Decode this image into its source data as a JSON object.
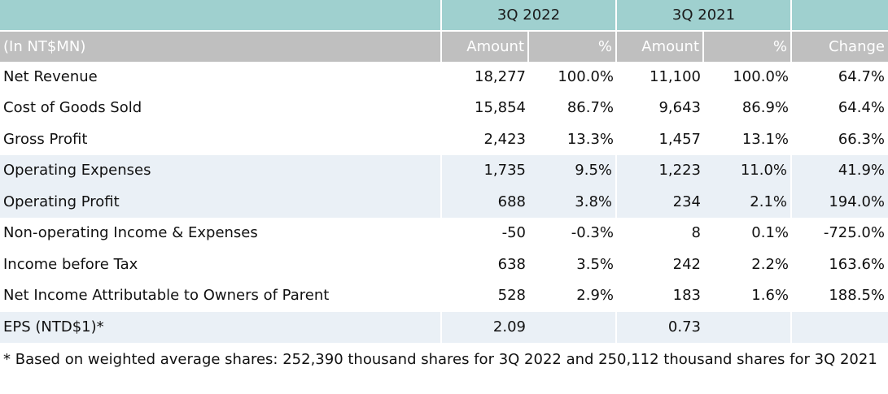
{
  "header": {
    "period1": "3Q 2022",
    "period2": "3Q 2021",
    "unit_label": "(In NT$MN)",
    "col_amount": "Amount",
    "col_pct": "%",
    "col_change": "Change"
  },
  "rows": [
    {
      "label": "Net Revenue",
      "a1": "18,277",
      "p1": "100.0%",
      "a2": "11,100",
      "p2": "100.0%",
      "chg": "64.7%"
    },
    {
      "label": "Cost of Goods Sold",
      "a1": "15,854",
      "p1": "86.7%",
      "a2": "9,643",
      "p2": "86.9%",
      "chg": "64.4%"
    },
    {
      "label": "Gross Profit",
      "a1": "2,423",
      "p1": "13.3%",
      "a2": "1,457",
      "p2": "13.1%",
      "chg": "66.3%"
    },
    {
      "label": "Operating Expenses",
      "a1": "1,735",
      "p1": "9.5%",
      "a2": "1,223",
      "p2": "11.0%",
      "chg": "41.9%"
    },
    {
      "label": "Operating Profit",
      "a1": "688",
      "p1": "3.8%",
      "a2": "234",
      "p2": "2.1%",
      "chg": "194.0%"
    },
    {
      "label": "Non-operating Income & Expenses",
      "a1": "-50",
      "p1": "-0.3%",
      "a2": "8",
      "p2": "0.1%",
      "chg": "-725.0%"
    },
    {
      "label": "Income before Tax",
      "a1": "638",
      "p1": "3.5%",
      "a2": "242",
      "p2": "2.2%",
      "chg": "163.6%"
    },
    {
      "label": "Net Income Attributable to Owners of Parent",
      "a1": "528",
      "p1": "2.9%",
      "a2": "183",
      "p2": "1.6%",
      "chg": "188.5%"
    },
    {
      "label": "EPS (NTD$1)*",
      "a1": "2.09",
      "p1": "",
      "a2": "0.73",
      "p2": "",
      "chg": ""
    }
  ],
  "footnote": "* Based on weighted average shares: 252,390 thousand shares for 3Q 2022 and 250,112 thousand shares for 3Q 2021",
  "colors": {
    "header_teal": "#9fd0cf",
    "subheader_gray": "#bfbfbf",
    "row_shade": "#eaf0f6"
  }
}
